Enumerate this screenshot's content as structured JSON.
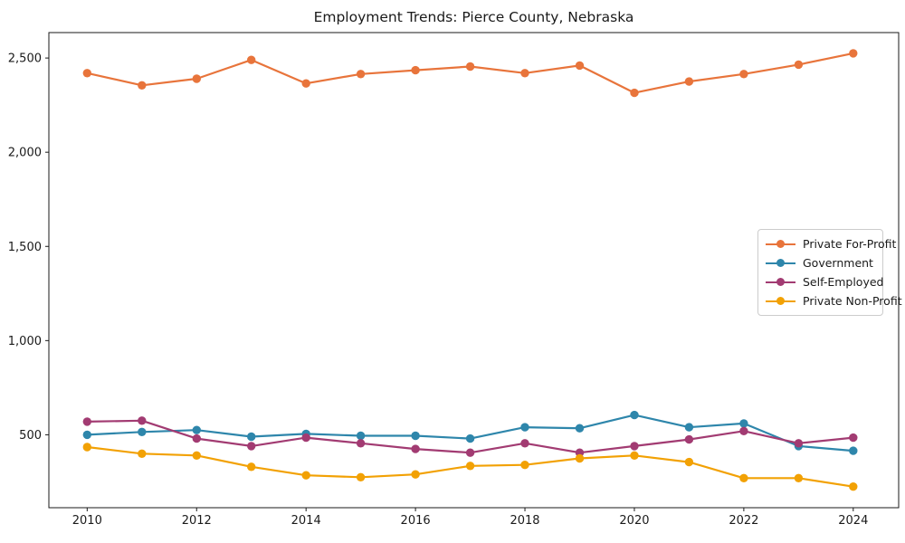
{
  "title": "Employment Trends: Pierce County, Nebraska",
  "chart_data": {
    "type": "line",
    "title": "Employment Trends: Pierce County, Nebraska",
    "xlabel": "",
    "ylabel": "",
    "x": [
      2010,
      2011,
      2012,
      2013,
      2014,
      2015,
      2016,
      2017,
      2018,
      2019,
      2020,
      2021,
      2022,
      2023,
      2024
    ],
    "series": [
      {
        "name": "Private For-Profit",
        "color": "#E8743B",
        "values": [
          2420,
          2355,
          2390,
          2490,
          2365,
          2415,
          2435,
          2455,
          2420,
          2460,
          2315,
          2375,
          2415,
          2465,
          2525
        ]
      },
      {
        "name": "Government",
        "color": "#2E86AB",
        "values": [
          500,
          515,
          525,
          490,
          505,
          495,
          495,
          480,
          540,
          535,
          605,
          540,
          560,
          440,
          415
        ]
      },
      {
        "name": "Self-Employed",
        "color": "#A23B72",
        "values": [
          570,
          575,
          480,
          440,
          485,
          455,
          425,
          405,
          455,
          405,
          440,
          475,
          520,
          455,
          485
        ]
      },
      {
        "name": "Private Non-Profit",
        "color": "#F2A104",
        "values": [
          435,
          400,
          390,
          330,
          285,
          275,
          290,
          335,
          340,
          375,
          390,
          355,
          270,
          270,
          225
        ]
      }
    ],
    "xticks": [
      2010,
      2012,
      2014,
      2016,
      2018,
      2020,
      2022,
      2024
    ],
    "xtick_labels": [
      "2010",
      "2012",
      "2014",
      "2016",
      "2018",
      "2020",
      "2022",
      "2024"
    ],
    "yticks": [
      500,
      1000,
      1500,
      2000,
      2500
    ],
    "ytick_labels": [
      "500",
      "1,000",
      "1,500",
      "2,000",
      "2,500"
    ],
    "xlim": [
      2009.3,
      2024.83
    ],
    "ylim": [
      113,
      2635
    ],
    "grid": false,
    "legend_position": "center right",
    "marker": "o",
    "axis_color": "#1a1a1a"
  }
}
